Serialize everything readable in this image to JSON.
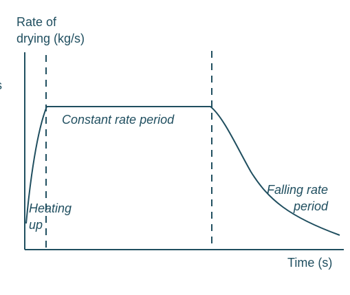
{
  "axes": {
    "y_label_line1": "Rate of",
    "y_label_line2": "drying (kg/s)",
    "x_label": "Time (s)"
  },
  "regions": {
    "heating_line1": "Heating",
    "heating_line2": "up",
    "constant": "Constant rate period",
    "falling_line1": "Falling rate",
    "falling_line2": "period"
  },
  "colors": {
    "ink": "#1f4e5f"
  }
}
